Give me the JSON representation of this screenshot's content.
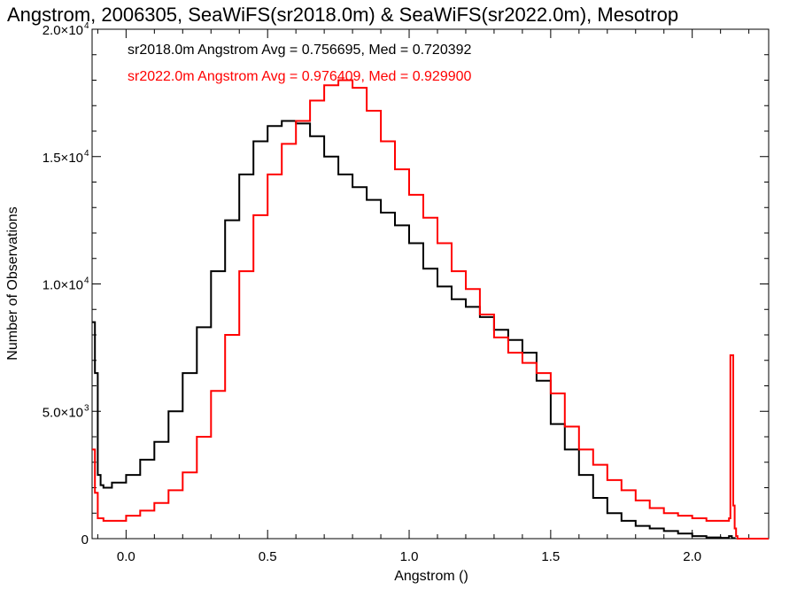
{
  "chart_data": {
    "type": "line",
    "title": "Angstrom, 2006305, SeaWiFS(sr2018.0m) & SeaWiFS(sr2022.0m), Mesotrop",
    "xlabel": "Angstrom ()",
    "ylabel": "Number of Observations",
    "xlim": [
      -0.12,
      2.27
    ],
    "ylim": [
      0,
      20000
    ],
    "x_ticks": [
      {
        "value": 0.0,
        "label": "0.0"
      },
      {
        "value": 0.5,
        "label": "0.5"
      },
      {
        "value": 1.0,
        "label": "1.0"
      },
      {
        "value": 1.5,
        "label": "1.5"
      },
      {
        "value": 2.0,
        "label": "2.0"
      }
    ],
    "y_ticks": [
      {
        "value": 0,
        "label": "0"
      },
      {
        "value": 5000,
        "label": "5.0×10",
        "sup": "3"
      },
      {
        "value": 10000,
        "label": "1.0×10",
        "sup": "4"
      },
      {
        "value": 15000,
        "label": "1.5×10",
        "sup": "4"
      },
      {
        "value": 20000,
        "label": "2.0×10",
        "sup": "4"
      }
    ],
    "grid": false,
    "legend_placement": "top-left",
    "series": [
      {
        "name": "sr2018.0m Angstrom Avg = 0.756695, Med = 0.720392",
        "color": "#000000",
        "x": [
          -0.12,
          -0.11,
          -0.1,
          -0.09,
          -0.08,
          -0.05,
          0.0,
          0.05,
          0.1,
          0.15,
          0.2,
          0.25,
          0.3,
          0.35,
          0.4,
          0.45,
          0.5,
          0.55,
          0.6,
          0.65,
          0.7,
          0.75,
          0.8,
          0.85,
          0.9,
          0.95,
          1.0,
          1.05,
          1.1,
          1.15,
          1.2,
          1.25,
          1.3,
          1.35,
          1.4,
          1.45,
          1.5,
          1.55,
          1.6,
          1.65,
          1.7,
          1.75,
          1.8,
          1.85,
          1.9,
          1.95,
          2.0,
          2.05,
          2.1,
          2.13,
          2.14,
          2.15
        ],
        "y": [
          8500,
          6500,
          2500,
          2100,
          2000,
          2200,
          2500,
          3100,
          3800,
          5000,
          6500,
          8300,
          10500,
          12500,
          14300,
          15600,
          16200,
          16400,
          16300,
          15800,
          15000,
          14300,
          13800,
          13300,
          12800,
          12300,
          11600,
          10600,
          9900,
          9400,
          9100,
          8700,
          8200,
          7800,
          7300,
          6200,
          4500,
          3500,
          2500,
          1600,
          1000,
          700,
          500,
          400,
          300,
          200,
          100,
          50,
          30,
          100,
          20,
          0
        ]
      },
      {
        "name": "sr2022.0m Angstrom Avg = 0.976409, Med = 0.929900",
        "color": "#ff0000",
        "x": [
          -0.12,
          -0.11,
          -0.1,
          -0.08,
          -0.05,
          0.0,
          0.05,
          0.1,
          0.15,
          0.2,
          0.25,
          0.3,
          0.35,
          0.4,
          0.45,
          0.5,
          0.55,
          0.6,
          0.65,
          0.7,
          0.75,
          0.8,
          0.85,
          0.9,
          0.95,
          1.0,
          1.05,
          1.1,
          1.15,
          1.2,
          1.25,
          1.3,
          1.35,
          1.4,
          1.45,
          1.5,
          1.55,
          1.6,
          1.65,
          1.7,
          1.75,
          1.8,
          1.85,
          1.9,
          1.95,
          2.0,
          2.05,
          2.1,
          2.13,
          2.135,
          2.145,
          2.15,
          2.155,
          2.16,
          2.27
        ],
        "y": [
          3500,
          1800,
          800,
          700,
          700,
          900,
          1100,
          1400,
          1900,
          2600,
          4000,
          5800,
          8000,
          10500,
          12700,
          14300,
          15500,
          16400,
          17200,
          17800,
          18000,
          17700,
          16800,
          15600,
          14500,
          13500,
          12600,
          11600,
          10500,
          9800,
          8800,
          7900,
          7300,
          6900,
          6500,
          5700,
          4400,
          3500,
          2900,
          2300,
          1900,
          1500,
          1200,
          1000,
          900,
          800,
          700,
          700,
          800,
          7200,
          1300,
          400,
          100,
          0,
          0
        ]
      }
    ]
  }
}
